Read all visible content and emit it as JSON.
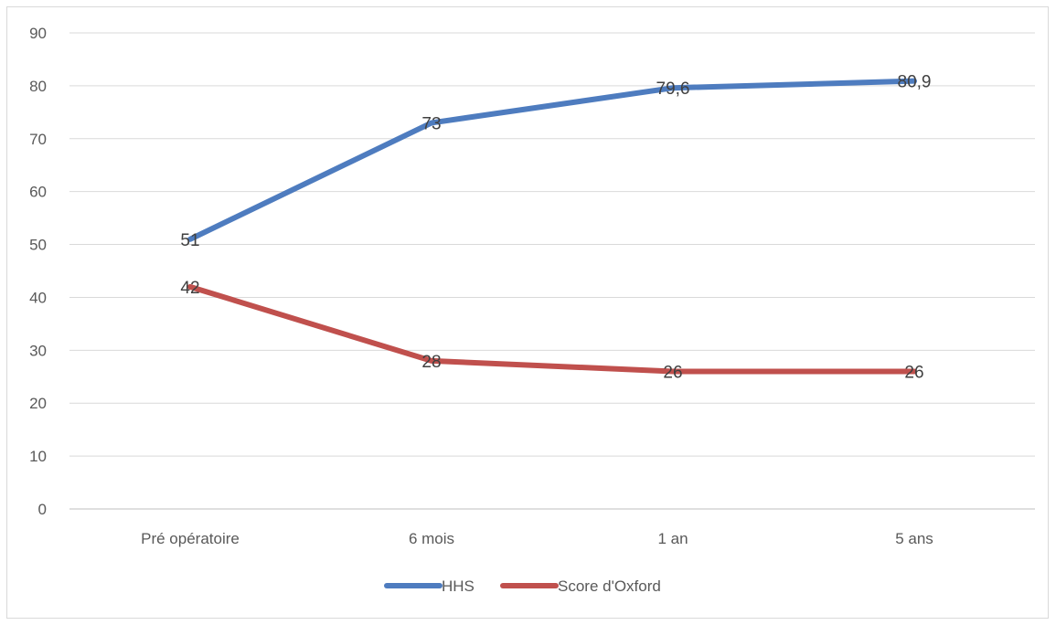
{
  "chart_data": {
    "type": "line",
    "categories": [
      "Pré opératoire",
      "6 mois",
      "1 an",
      "5 ans"
    ],
    "series": [
      {
        "name": "HHS",
        "values": [
          51,
          73,
          79.6,
          80.9
        ],
        "labels": [
          "51",
          "73",
          "79,6",
          "80,9"
        ],
        "color": "#4e7cbf"
      },
      {
        "name": "Score d'Oxford",
        "values": [
          42,
          28,
          26,
          26
        ],
        "labels": [
          "42",
          "28",
          "26",
          "26"
        ],
        "color": "#c0504d"
      }
    ],
    "ylim": [
      0,
      90
    ],
    "yticks": [
      0,
      10,
      20,
      30,
      40,
      50,
      60,
      70,
      80,
      90
    ],
    "grid": true,
    "legend_position": "bottom",
    "gridline_color": "#d9d9d9",
    "axis_line_color": "#bfbfbf"
  }
}
